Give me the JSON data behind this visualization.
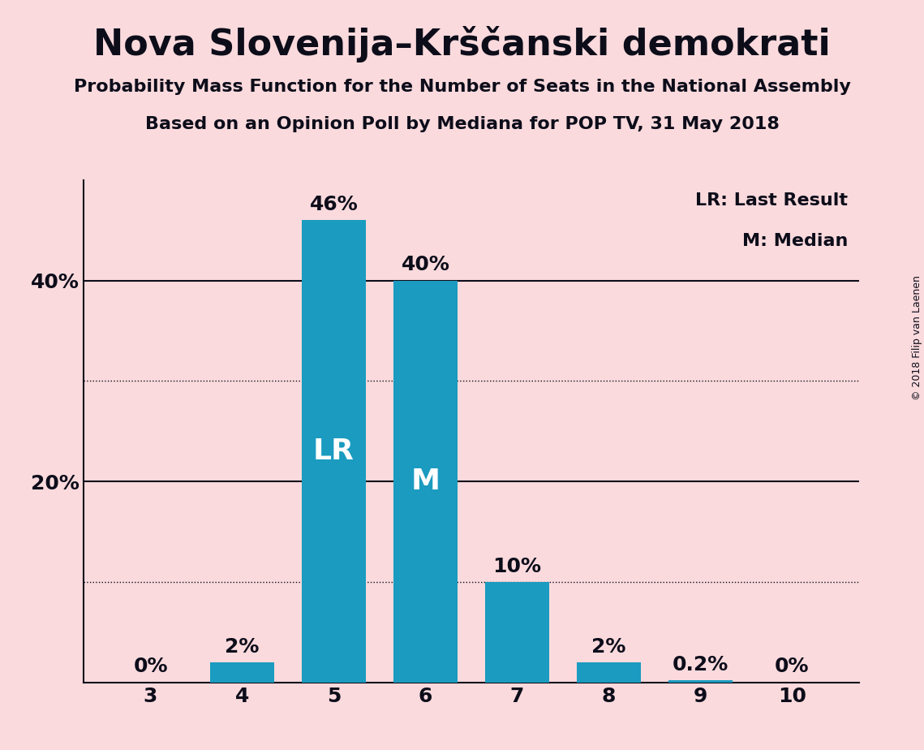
{
  "title": "Nova Slovenija–Krščanski demokrati",
  "subtitle1": "Probability Mass Function for the Number of Seats in the National Assembly",
  "subtitle2": "Based on an Opinion Poll by Mediana for POP TV, 31 May 2018",
  "categories": [
    3,
    4,
    5,
    6,
    7,
    8,
    9,
    10
  ],
  "values": [
    0.0,
    2.0,
    46.0,
    40.0,
    10.0,
    2.0,
    0.2,
    0.0
  ],
  "bar_color": "#1a9bbf",
  "background_color": "#fadadd",
  "bar_labels": [
    "0%",
    "2%",
    "46%",
    "40%",
    "10%",
    "2%",
    "0.2%",
    "0%"
  ],
  "lr_bar": 5,
  "median_bar": 6,
  "lr_label": "LR",
  "median_label": "M",
  "legend_lr": "LR: Last Result",
  "legend_m": "M: Median",
  "yticks": [
    0,
    10,
    20,
    30,
    40
  ],
  "ytick_labels": [
    "",
    "",
    "20%",
    "",
    "40%"
  ],
  "dotted_lines": [
    10,
    30
  ],
  "solid_lines": [
    20,
    40
  ],
  "ylim": [
    0,
    50
  ],
  "copyright_text": "© 2018 Filip van Laenen",
  "title_fontsize": 32,
  "subtitle_fontsize": 16,
  "bar_label_fontsize": 18,
  "bar_text_fontsize": 26,
  "tick_fontsize": 18,
  "legend_fontsize": 16,
  "text_color": "#0d0d1a"
}
